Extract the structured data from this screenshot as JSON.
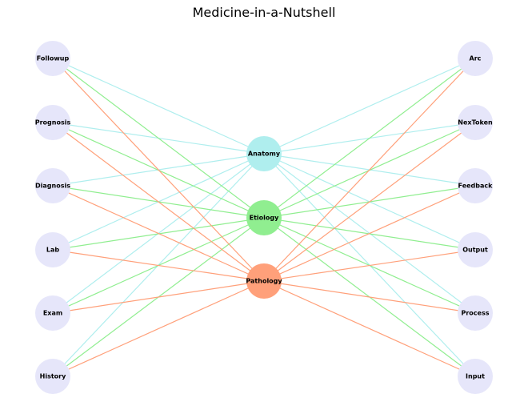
{
  "title": "Medicine-in-a-Nutshell",
  "colors": {
    "outer_node": "#e6e6fa",
    "anatomy": "#afeeee",
    "etiology": "#90ee90",
    "pathology": "#ffa07a"
  },
  "left_nodes": [
    "Followup",
    "Prognosis",
    "Diagnosis",
    "Lab",
    "Exam",
    "History"
  ],
  "right_nodes": [
    "Arc",
    "NexToken",
    "Feedback",
    "Output",
    "Process",
    "Input"
  ],
  "center_nodes": [
    {
      "id": "anatomy",
      "label": "Anatomy"
    },
    {
      "id": "etiology",
      "label": "Etiology"
    },
    {
      "id": "pathology",
      "label": "Pathology"
    }
  ],
  "edges_note_hidden": null
}
